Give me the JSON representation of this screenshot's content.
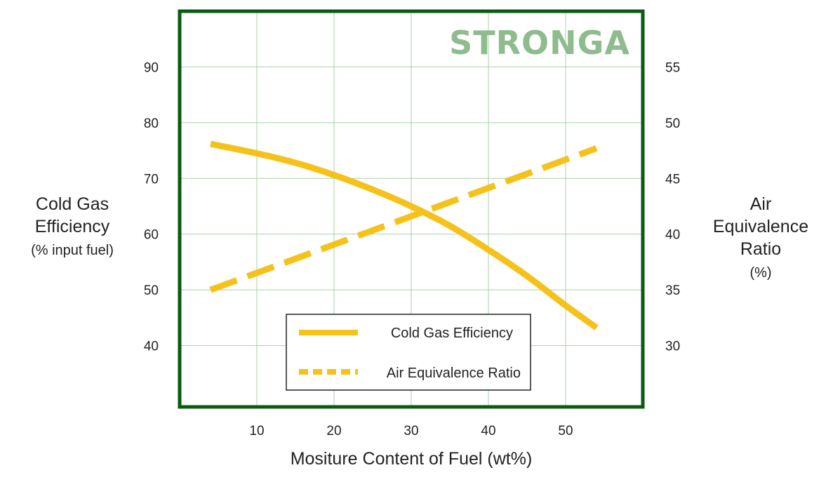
{
  "chart_data": {
    "type": "line",
    "watermark": "STRONGA",
    "xlabel": "Mositure Content of Fuel (wt%)",
    "xticks": [
      10,
      20,
      30,
      40,
      50
    ],
    "xlim": [
      0,
      60
    ],
    "y_left": {
      "label_lines": [
        "Cold Gas",
        "Efficiency"
      ],
      "unit": "(% input fuel)",
      "ticks": [
        40,
        50,
        60,
        70,
        80,
        90
      ],
      "lim": [
        29,
        100
      ]
    },
    "y_right": {
      "label_lines": [
        "Air",
        "Equivalence",
        "Ratio"
      ],
      "unit": "(%)",
      "ticks": [
        30,
        35,
        40,
        45,
        50,
        55
      ],
      "lim": [
        24.5,
        60
      ]
    },
    "grid": true,
    "legend_position": "bottom-center",
    "series": [
      {
        "name": "Cold Gas Efficiency",
        "axis": "left",
        "style": "solid",
        "color": "#f5c21b",
        "x": [
          4,
          10,
          15,
          20,
          25,
          30,
          35,
          40,
          45,
          50,
          54
        ],
        "y": [
          76.2,
          74.5,
          72.8,
          70.6,
          68.0,
          65.0,
          61.5,
          57.2,
          52.5,
          47.2,
          43.2
        ]
      },
      {
        "name": "Air Equivalence Ratio",
        "axis": "right",
        "style": "dashed",
        "color": "#f5c21b",
        "x": [
          4,
          54
        ],
        "y": [
          35.0,
          47.7
        ]
      }
    ]
  },
  "colors": {
    "frame": "#0b5a12",
    "grid": "#a9cfa9",
    "series": "#f5c21b"
  }
}
